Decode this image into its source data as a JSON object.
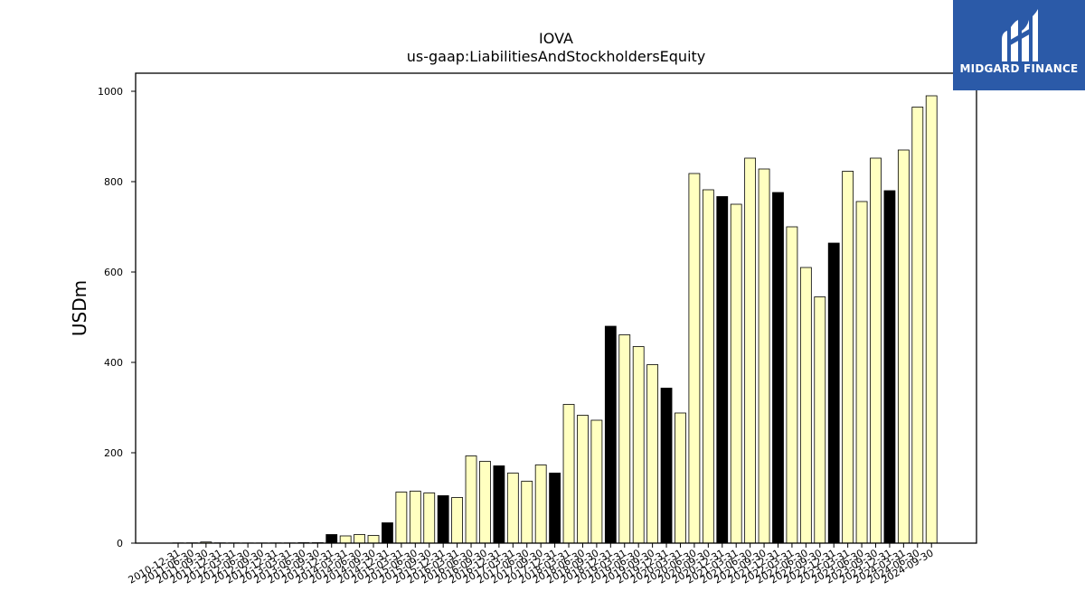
{
  "chart_data": {
    "type": "bar",
    "title": "IOVA",
    "subtitle": "us-gaap:LiabilitiesAndStockholdersEquity",
    "ylabel": "USDm",
    "xlabel": "",
    "ylim": [
      0,
      1040
    ],
    "yticks": [
      0,
      200,
      400,
      600,
      800,
      1000
    ],
    "categories": [
      "2010-12-31",
      "2011-06-30",
      "2011-09-30",
      "2011-12-31",
      "2012-03-31",
      "2012-06-30",
      "2012-09-30",
      "2012-12-31",
      "2013-03-31",
      "2013-06-30",
      "2013-09-30",
      "2013-12-31",
      "2014-03-31",
      "2014-06-30",
      "2014-09-30",
      "2014-12-31",
      "2015-03-31",
      "2015-06-30",
      "2015-09-30",
      "2015-12-31",
      "2016-03-31",
      "2016-06-30",
      "2016-09-30",
      "2016-12-31",
      "2017-03-31",
      "2017-06-30",
      "2017-09-30",
      "2017-12-31",
      "2018-03-31",
      "2018-06-30",
      "2018-09-30",
      "2018-12-31",
      "2019-03-31",
      "2019-06-30",
      "2019-09-30",
      "2019-12-31",
      "2020-03-31",
      "2020-06-30",
      "2020-09-30",
      "2020-12-31",
      "2021-03-31",
      "2021-06-30",
      "2021-09-30",
      "2021-12-31",
      "2022-03-31",
      "2022-06-30",
      "2022-09-30",
      "2022-12-31",
      "2023-03-31",
      "2023-06-30",
      "2023-09-30",
      "2023-12-31",
      "2024-03-31",
      "2024-06-30",
      "2024-09-30"
    ],
    "values": [
      0.5,
      0.6,
      2.5,
      0.6,
      0.5,
      0.4,
      0.4,
      0.5,
      0.5,
      1.0,
      1.0,
      19,
      16,
      19,
      17,
      45,
      113,
      115,
      111,
      105,
      101,
      193,
      181,
      171,
      155,
      137,
      173,
      155,
      307,
      283,
      272,
      480,
      461,
      435,
      395,
      343,
      288,
      818,
      782,
      767,
      750,
      852,
      828,
      776,
      700,
      610,
      545,
      664,
      823,
      756,
      852,
      780,
      870,
      965,
      990
    ],
    "fiscal_year_end": [
      true,
      false,
      false,
      true,
      false,
      false,
      false,
      true,
      false,
      false,
      false,
      true,
      false,
      false,
      false,
      true,
      false,
      false,
      false,
      true,
      false,
      false,
      false,
      true,
      false,
      false,
      false,
      true,
      false,
      false,
      false,
      true,
      false,
      false,
      false,
      true,
      false,
      false,
      false,
      true,
      false,
      false,
      false,
      true,
      false,
      false,
      false,
      true,
      false,
      false,
      false,
      true,
      false,
      false,
      false
    ],
    "colors": {
      "quarter": "#ffffc0",
      "year_end": "#000000",
      "edge": "#000000"
    }
  },
  "logo": {
    "brand": "MIDGARD FINANCE"
  }
}
